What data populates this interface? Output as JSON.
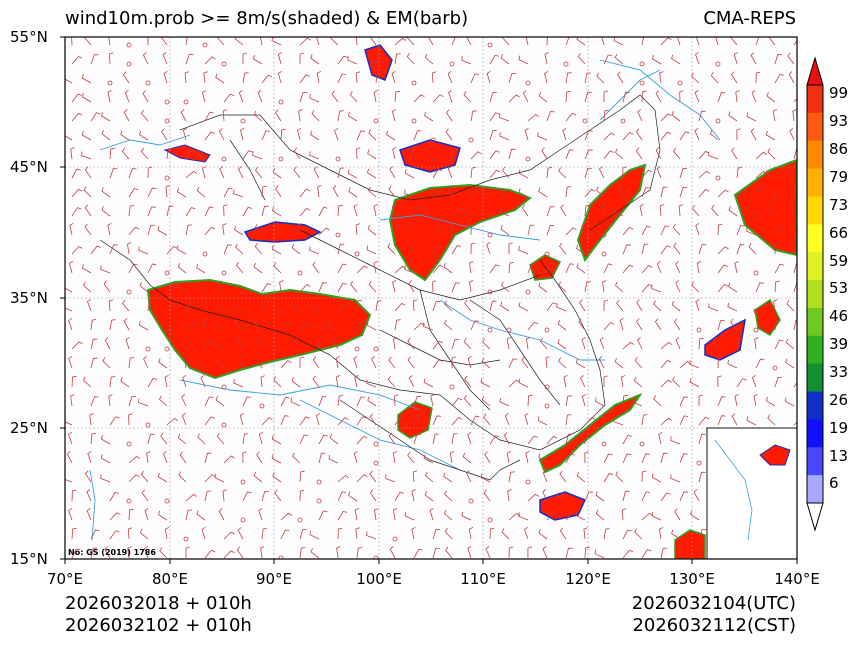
{
  "header": {
    "title_left": "wind10m.prob >= 8m/s(shaded) & EM(barb)",
    "title_right": "CMA-REPS"
  },
  "axes": {
    "lat_labels": [
      "55°N",
      "45°N",
      "35°N",
      "25°N",
      "15°N"
    ],
    "lon_labels": [
      "70°E",
      "80°E",
      "90°E",
      "100°E",
      "110°E",
      "120°E",
      "130°E",
      "140°E"
    ],
    "lat_range": [
      15,
      55
    ],
    "lon_range": [
      70,
      140
    ]
  },
  "stamp": "No: GS (2019) 1786",
  "footer": {
    "left_line1": "2026032018  +  010h",
    "left_line2": "2026032102  +  010h",
    "right_line1": "2026032104(UTC)",
    "right_line2": "2026032112(CST)"
  },
  "colorbar": {
    "labels": [
      "99",
      "93",
      "86",
      "79",
      "73",
      "66",
      "59",
      "53",
      "46",
      "39",
      "33",
      "26",
      "19",
      "13",
      "6"
    ],
    "colors": [
      "#f03010",
      "#ff5a10",
      "#ff8a00",
      "#ffb000",
      "#ffd800",
      "#ffff20",
      "#e0f020",
      "#b0e020",
      "#70c820",
      "#30b020",
      "#109030",
      "#1030c8",
      "#1010ff",
      "#4848ff",
      "#a8a8ff"
    ],
    "top_color": "#e81010",
    "bottom_color": "#ffffff"
  },
  "colors": {
    "land_prob_high": "#ff0000",
    "barb": "#c04040",
    "border": "#222222",
    "river": "#3aa0e0",
    "grid": "#999999"
  }
}
